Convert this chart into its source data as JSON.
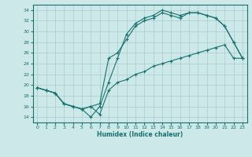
{
  "xlabel": "Humidex (Indice chaleur)",
  "bg_color": "#cce8e8",
  "line_color": "#1a7070",
  "grid_color": "#aacccc",
  "xlim": [
    -0.5,
    23.5
  ],
  "ylim": [
    13,
    35
  ],
  "yticks": [
    14,
    16,
    18,
    20,
    22,
    24,
    26,
    28,
    30,
    32,
    34
  ],
  "xticks": [
    0,
    1,
    2,
    3,
    4,
    5,
    6,
    7,
    8,
    9,
    10,
    11,
    12,
    13,
    14,
    15,
    16,
    17,
    18,
    19,
    20,
    21,
    22,
    23
  ],
  "line1_x": [
    0,
    1,
    2,
    3,
    4,
    5,
    6,
    7,
    8,
    9,
    10,
    11,
    12,
    13,
    14,
    15,
    16,
    17,
    18,
    19,
    20,
    21,
    22,
    23
  ],
  "line1_y": [
    19.5,
    19.0,
    18.5,
    16.5,
    16.0,
    15.5,
    14.0,
    16.0,
    20.5,
    25.0,
    29.5,
    31.5,
    32.5,
    33.0,
    34.0,
    33.5,
    33.0,
    33.5,
    33.5,
    33.0,
    32.5,
    31.0,
    28.0,
    25.0
  ],
  "line2_x": [
    0,
    1,
    2,
    3,
    4,
    5,
    6,
    7,
    8,
    9,
    10,
    11,
    12,
    13,
    14,
    15,
    16,
    17,
    18,
    19,
    20,
    21,
    22,
    23
  ],
  "line2_y": [
    19.5,
    19.0,
    18.5,
    16.5,
    16.0,
    15.5,
    16.0,
    16.5,
    25.0,
    26.0,
    28.5,
    31.0,
    32.0,
    32.5,
    33.5,
    33.0,
    32.5,
    33.5,
    33.5,
    33.0,
    32.5,
    31.0,
    28.0,
    25.0
  ],
  "line3_x": [
    0,
    1,
    2,
    3,
    4,
    5,
    6,
    7,
    8,
    9,
    10,
    11,
    12,
    13,
    14,
    15,
    16,
    17,
    18,
    19,
    20,
    21,
    22,
    23
  ],
  "line3_y": [
    19.5,
    19.0,
    18.5,
    16.5,
    16.0,
    15.5,
    16.0,
    14.5,
    19.0,
    20.5,
    21.0,
    22.0,
    22.5,
    23.5,
    24.0,
    24.5,
    25.0,
    25.5,
    26.0,
    26.5,
    27.0,
    27.5,
    25.0,
    25.0
  ]
}
